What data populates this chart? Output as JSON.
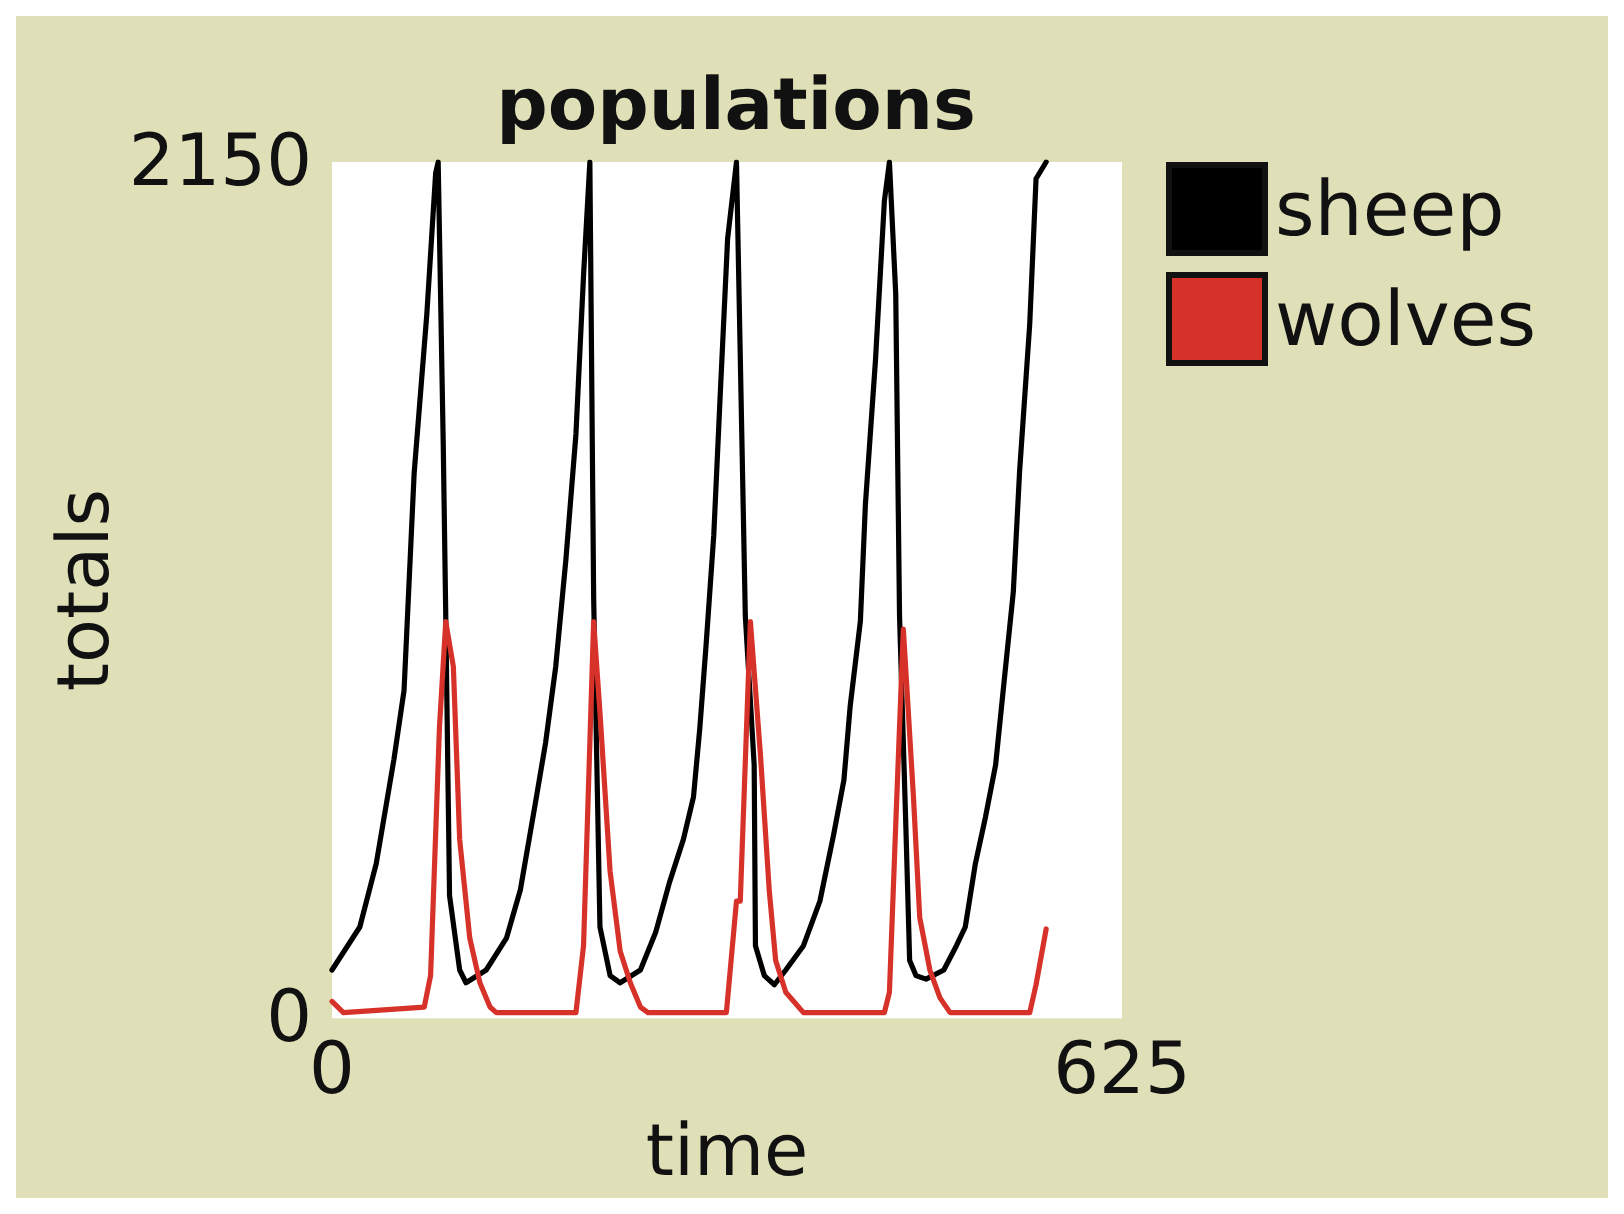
{
  "chart_data": {
    "type": "line",
    "title": "populations",
    "xlabel": "time",
    "ylabel": "totals",
    "xlim": [
      0,
      625
    ],
    "xticks": [
      0,
      625
    ],
    "ylim": [
      0,
      2150
    ],
    "yticks": [
      0,
      2150
    ],
    "grid": false,
    "legend": "top right",
    "marker": "none",
    "line_style": "solid",
    "series": [
      {
        "name": "sheep",
        "color": "#000000",
        "x": [
          0,
          22,
          35,
          49,
          57,
          65,
          75,
          82,
          84,
          88,
          90,
          93,
          101,
          106,
          122,
          138,
          149,
          161,
          169,
          177,
          185,
          193,
          199,
          204,
          207,
          212,
          220,
          228,
          244,
          256,
          267,
          278,
          286,
          291,
          296,
          302,
          307,
          313,
          320,
          327,
          334,
          335,
          342,
          350,
          359,
          373,
          386,
          397,
          405,
          410,
          418,
          422,
          430,
          437,
          441,
          446,
          449,
          454,
          457,
          462,
          470,
          484,
          494,
          501,
          509,
          517,
          525,
          531,
          539,
          544,
          552,
          557,
          565
        ],
        "values": [
          121,
          229,
          388,
          650,
          823,
          1369,
          1767,
          2122,
          2150,
          1444,
          1010,
          308,
          121,
          89,
          121,
          201,
          322,
          542,
          692,
          883,
          1150,
          1467,
          1865,
          2150,
          1056,
          229,
          107,
          89,
          121,
          215,
          341,
          449,
          556,
          729,
          939,
          1211,
          1556,
          1958,
          2150,
          1010,
          636,
          182,
          107,
          84,
          121,
          182,
          294,
          463,
          598,
          785,
          996,
          1290,
          1654,
          2052,
          2150,
          1818,
          1010,
          481,
          145,
          107,
          98,
          121,
          182,
          229,
          388,
          505,
          636,
          823,
          1070,
          1374,
          1743,
          2108,
          2150
        ]
      },
      {
        "name": "wolves",
        "color": "#d7322a",
        "x": [
          0,
          9,
          73,
          78,
          85,
          90,
          96,
          101,
          109,
          117,
          125,
          130,
          193,
          199,
          207,
          212,
          220,
          228,
          236,
          244,
          250,
          312,
          320,
          323,
          331,
          339,
          346,
          351,
          359,
          373,
          437,
          441,
          446,
          452,
          460,
          465,
          473,
          481,
          489,
          552,
          557,
          565
        ],
        "values": [
          42,
          14,
          28,
          107,
          729,
          996,
          883,
          449,
          201,
          89,
          28,
          14,
          14,
          182,
          996,
          767,
          369,
          168,
          89,
          28,
          14,
          14,
          294,
          294,
          996,
          659,
          318,
          145,
          65,
          14,
          14,
          65,
          486,
          977,
          556,
          252,
          121,
          51,
          14,
          14,
          84,
          224
        ]
      }
    ]
  }
}
